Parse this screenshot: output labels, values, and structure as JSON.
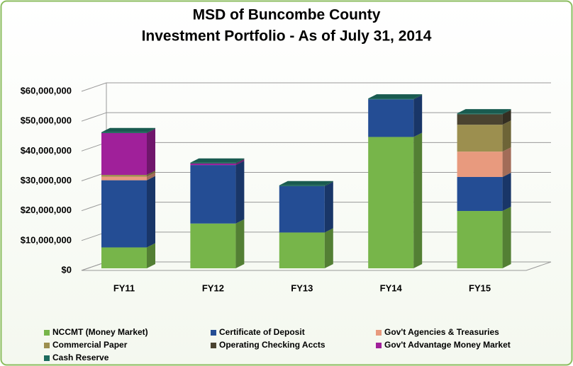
{
  "chart_data": {
    "type": "bar3d_stacked",
    "title": "MSD of Buncombe County",
    "subtitle": "Investment Portfolio - As of July 31, 2014",
    "categories": [
      "FY11",
      "FY12",
      "FY13",
      "FY14",
      "FY15"
    ],
    "series": [
      {
        "name": "NCCMT (Money Market)",
        "color": "#77b54a",
        "values": [
          7000000,
          15000000,
          12000000,
          44000000,
          19200000
        ]
      },
      {
        "name": "Certificate of Deposit",
        "color": "#244d94",
        "values": [
          22500000,
          19600000,
          15500000,
          12600000,
          11400000
        ]
      },
      {
        "name": "Gov't Agencies & Treasuries",
        "color": "#e89a7e",
        "values": [
          1200000,
          0,
          0,
          0,
          8500000
        ]
      },
      {
        "name": "Commercial  Paper",
        "color": "#9c8f4f",
        "values": [
          600000,
          0,
          0,
          0,
          9000000
        ]
      },
      {
        "name": "Operating Checking Accts",
        "color": "#4a4330",
        "values": [
          0,
          0,
          0,
          0,
          3500000
        ]
      },
      {
        "name": "Gov't Advantage Money Market",
        "color": "#a0209a",
        "values": [
          14000000,
          500000,
          0,
          0,
          0
        ]
      },
      {
        "name": "Cash  Reserve",
        "color": "#1d6b5e",
        "values": [
          300000,
          300000,
          300000,
          300000,
          300000
        ]
      }
    ],
    "ylim": [
      0,
      60000000
    ],
    "yticks": [
      {
        "value": 0,
        "label": "$0"
      },
      {
        "value": 10000000,
        "label": "$10,000,000"
      },
      {
        "value": 20000000,
        "label": "$20,000,000"
      },
      {
        "value": 30000000,
        "label": "$30,000,000"
      },
      {
        "value": 40000000,
        "label": "$40,000,000"
      },
      {
        "value": 50000000,
        "label": "$50,000,000"
      },
      {
        "value": 60000000,
        "label": "$60,000,000"
      }
    ],
    "grid": true
  }
}
